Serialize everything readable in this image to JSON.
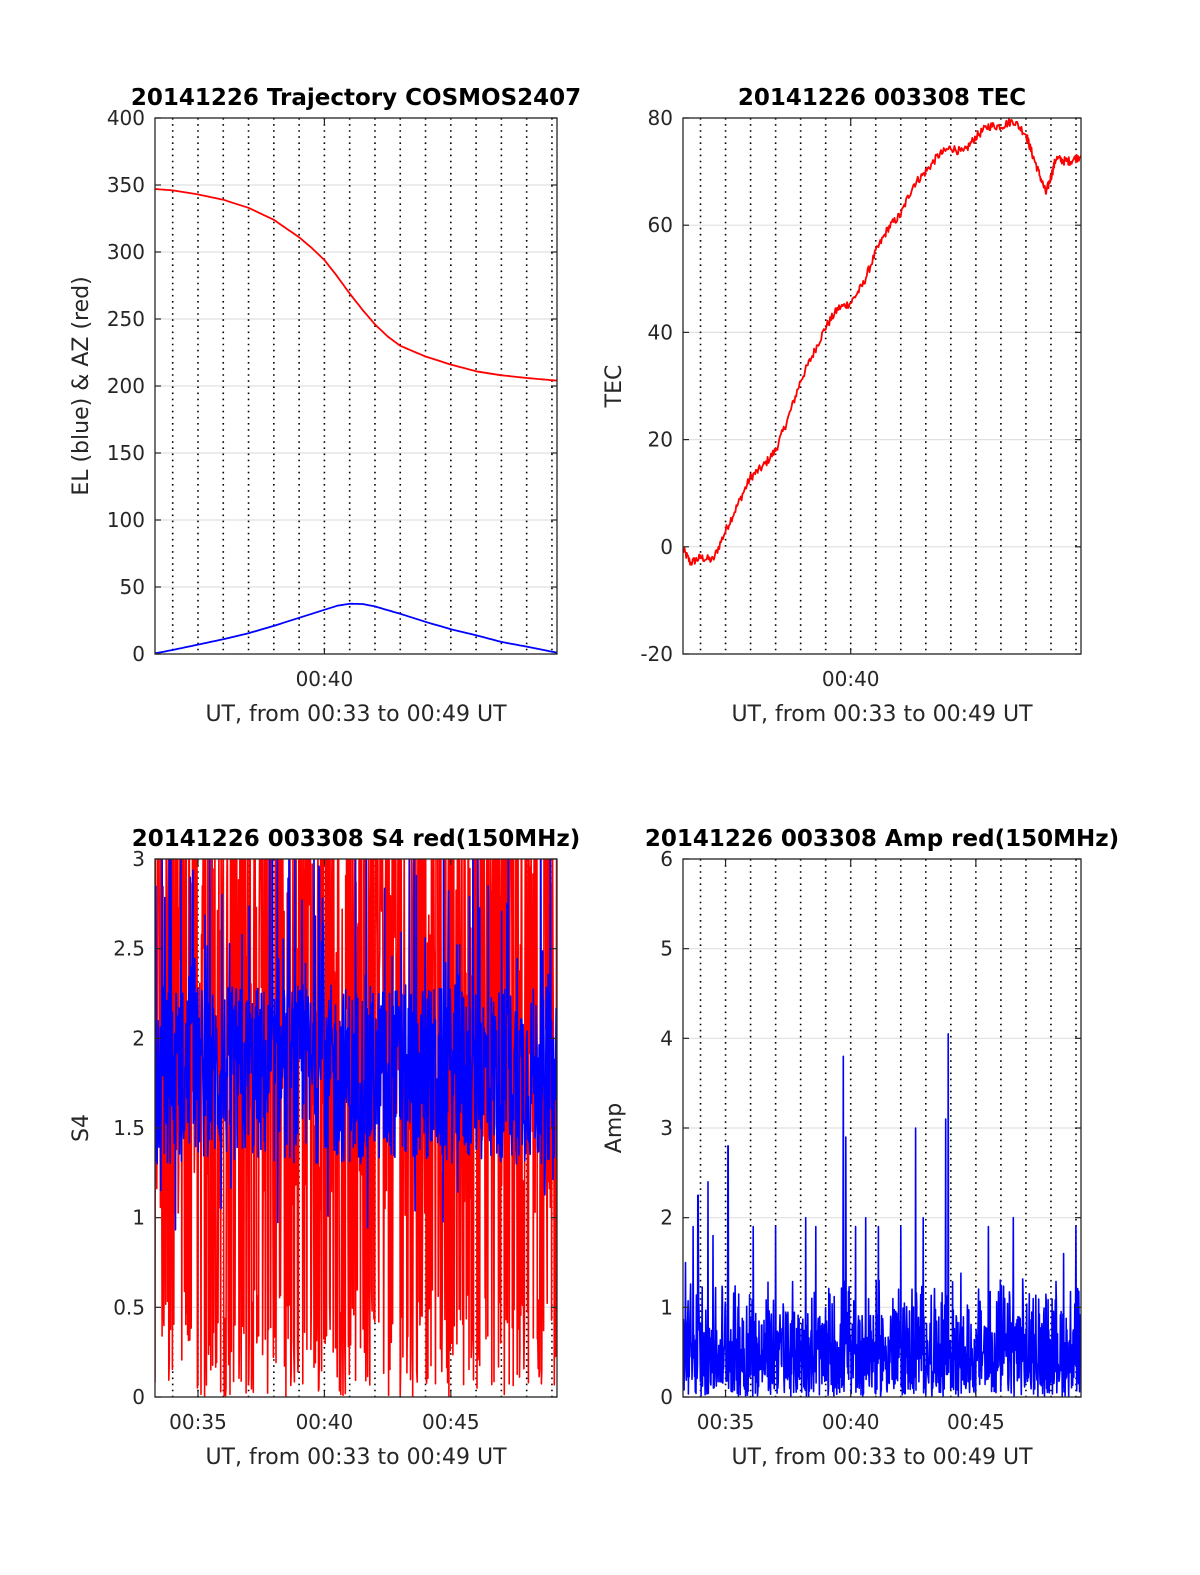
{
  "colors": {
    "red": "#ff0000",
    "blue": "#0000ff",
    "grid": "#e1e1e1",
    "axis": "#262626"
  },
  "chart_data": [
    {
      "type": "line",
      "title": "20141226 Trajectory COSMOS2407",
      "xlabel": "UT, from 00:33 to 00:49 UT",
      "ylabel": "EL (blue) & AZ (red)",
      "xlim": [
        33.3,
        49.2
      ],
      "ylim": [
        0,
        400
      ],
      "yticks": [
        0,
        50,
        100,
        150,
        200,
        250,
        300,
        350,
        400
      ],
      "ytick_labels": [
        "0",
        "50",
        "100",
        "150",
        "200",
        "250",
        "300",
        "350",
        "400"
      ],
      "xticks": [
        40
      ],
      "xtick_labels": [
        "00:40"
      ],
      "minor_x_gridlines": [
        34,
        35,
        36,
        37,
        38,
        39,
        40,
        41,
        42,
        43,
        44,
        45,
        46,
        47,
        48,
        49
      ],
      "grid": true,
      "series": [
        {
          "color": "red",
          "x": [
            33.3,
            34,
            35,
            36,
            37,
            38,
            39,
            39.5,
            40,
            40.5,
            41,
            41.5,
            42,
            42.5,
            43,
            44,
            45,
            46,
            47,
            48,
            49.2
          ],
          "y": [
            347,
            346,
            343,
            339,
            333,
            324,
            311,
            303,
            294,
            282,
            269,
            257,
            246,
            237,
            230,
            222,
            216,
            211,
            208,
            206,
            204
          ]
        },
        {
          "color": "blue",
          "x": [
            33.3,
            34,
            35,
            36,
            37,
            38,
            39,
            40,
            40.5,
            41,
            41.5,
            42,
            43,
            44,
            45,
            46,
            47,
            48,
            49.2
          ],
          "y": [
            0.5,
            3,
            7,
            11,
            15.5,
            21,
            27,
            33,
            36,
            37.5,
            37.3,
            35.5,
            30,
            24,
            18.5,
            14,
            9,
            5.5,
            1
          ]
        }
      ]
    },
    {
      "type": "line",
      "title": "20141226 003308 TEC",
      "xlabel": "UT, from 00:33 to 00:49 UT",
      "ylabel": "TEC",
      "xlim": [
        33.3,
        49.2
      ],
      "ylim": [
        -20,
        80
      ],
      "yticks": [
        -20,
        0,
        20,
        40,
        60,
        80
      ],
      "ytick_labels": [
        "-20",
        "0",
        "20",
        "40",
        "60",
        "80"
      ],
      "xticks": [
        40
      ],
      "xtick_labels": [
        "00:40"
      ],
      "minor_x_gridlines": [
        34,
        35,
        36,
        37,
        38,
        39,
        40,
        41,
        42,
        43,
        44,
        45,
        46,
        47,
        48,
        49
      ],
      "grid": true,
      "series": [
        {
          "color": "red",
          "x": [
            33.3,
            33.6,
            34,
            34.5,
            35,
            35.5,
            36,
            36.5,
            37,
            37.5,
            38,
            38.5,
            39,
            39.5,
            40,
            40.5,
            41,
            41.5,
            42,
            42.5,
            43,
            43.5,
            44,
            44.5,
            45,
            45.5,
            46,
            46.5,
            47,
            47.2,
            47.5,
            47.8,
            48,
            48.2,
            48.5,
            48.8,
            49.2
          ],
          "y": [
            -0.5,
            -3,
            -2,
            -2.5,
            3,
            8,
            13,
            15,
            18,
            24,
            31,
            36,
            41,
            44.5,
            45.5,
            49,
            55,
            59.5,
            62,
            67.5,
            70,
            73,
            74.5,
            73.5,
            76.5,
            78.5,
            78.5,
            79.5,
            77,
            74,
            70,
            66,
            69,
            72.5,
            72,
            72,
            73
          ]
        }
      ]
    },
    {
      "type": "line",
      "title": "20141226 003308 S4 red(150MHz)",
      "xlabel": "UT, from 00:33 to 00:49 UT",
      "ylabel": "S4",
      "xlim": [
        33.3,
        49.2
      ],
      "ylim": [
        0,
        3
      ],
      "yticks": [
        0,
        0.5,
        1,
        1.5,
        2,
        2.5,
        3
      ],
      "ytick_labels": [
        "0",
        "0.5",
        "1",
        "1.5",
        "2",
        "2.5",
        "3"
      ],
      "xticks": [
        35,
        40,
        45
      ],
      "xtick_labels": [
        "00:35",
        "00:40",
        "00:45"
      ],
      "minor_x_gridlines": [
        34,
        35,
        36,
        37,
        38,
        39,
        40,
        41,
        42,
        43,
        44,
        45,
        46,
        47,
        48,
        49
      ],
      "grid": true,
      "series": [
        {
          "color": "red",
          "noise": "dense",
          "y_range": [
            0,
            3
          ]
        },
        {
          "color": "blue",
          "noise": "dense",
          "y_range": [
            0.85,
            3
          ],
          "typical_range": [
            1.3,
            2.3
          ]
        }
      ]
    },
    {
      "type": "line",
      "title": "20141226 003308 Amp red(150MHz)",
      "xlabel": "UT, from 00:33 to 00:49 UT",
      "ylabel": "Amp",
      "xlim": [
        33.3,
        49.2
      ],
      "ylim": [
        0,
        6
      ],
      "yticks": [
        0,
        1,
        2,
        3,
        4,
        5,
        6
      ],
      "ytick_labels": [
        "0",
        "1",
        "2",
        "3",
        "4",
        "5",
        "6"
      ],
      "xticks": [
        35,
        40,
        45
      ],
      "xtick_labels": [
        "00:35",
        "00:40",
        "00:45"
      ],
      "minor_x_gridlines": [
        34,
        35,
        36,
        37,
        38,
        39,
        40,
        41,
        42,
        43,
        44,
        45,
        46,
        47,
        48,
        49
      ],
      "grid": true,
      "series": [
        {
          "color": "blue",
          "noise": "dense",
          "y_range": [
            0,
            1.4
          ],
          "spikes": [
            [
              33.4,
              1.5
            ],
            [
              33.7,
              1.9
            ],
            [
              33.9,
              2.25
            ],
            [
              34.3,
              2.4
            ],
            [
              34.5,
              1.8
            ],
            [
              35.1,
              2.8
            ],
            [
              36.1,
              1.9
            ],
            [
              37.0,
              1.9
            ],
            [
              38.2,
              2.0
            ],
            [
              38.6,
              1.9
            ],
            [
              39.7,
              3.8
            ],
            [
              39.8,
              2.9
            ],
            [
              40.2,
              1.9
            ],
            [
              40.6,
              2.0
            ],
            [
              41.1,
              1.9
            ],
            [
              42.0,
              1.9
            ],
            [
              42.6,
              3.0
            ],
            [
              42.9,
              2.0
            ],
            [
              43.8,
              3.1
            ],
            [
              43.9,
              4.05
            ],
            [
              45.5,
              1.9
            ],
            [
              46.5,
              2.0
            ],
            [
              48.5,
              1.6
            ],
            [
              49.0,
              1.9
            ]
          ]
        }
      ]
    }
  ]
}
